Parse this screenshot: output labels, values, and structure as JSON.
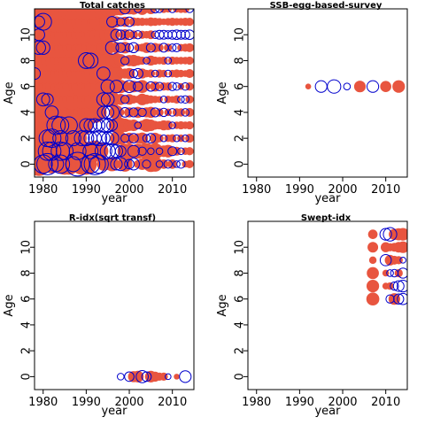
{
  "colors": {
    "positive": "#e8553f",
    "negative": "#0000cc"
  },
  "chart_data": [
    {
      "type": "scatter",
      "title": "Total catches",
      "xlabel": "year",
      "ylabel": "Age",
      "xlim": [
        1978,
        2015
      ],
      "ylim": [
        -1,
        12
      ],
      "xticks": [
        1980,
        1990,
        2000,
        2010
      ],
      "yticks": [
        0,
        2,
        4,
        6,
        8,
        10
      ],
      "ages": [
        0,
        1,
        2,
        3,
        4,
        5,
        6,
        7,
        8,
        9,
        10,
        11,
        12
      ],
      "years": [
        1978,
        1979,
        1980,
        1981,
        1982,
        1983,
        1984,
        1985,
        1986,
        1987,
        1988,
        1989,
        1990,
        1991,
        1992,
        1993,
        1994,
        1995,
        1996,
        1997,
        1998,
        1999,
        2000,
        2001,
        2002,
        2003,
        2004,
        2005,
        2006,
        2007,
        2008,
        2009,
        2010,
        2011,
        2012,
        2013,
        2014
      ],
      "residuals": [
        [
          4,
          5,
          -3,
          -4,
          3,
          -2,
          -3,
          4,
          4,
          -2,
          -5,
          4,
          4,
          -3,
          -4,
          -3,
          1.5,
          1.2,
          1.8,
          -1.2,
          -1.5,
          2,
          -0.8,
          -1.2,
          0.6,
          1.2,
          -0.6,
          2.2,
          2,
          -0.4,
          0.8,
          -0.6,
          0.8,
          -0.4,
          -0.6,
          0.4,
          0.6
        ],
        [
          4,
          4,
          4,
          -3,
          -3,
          4,
          -3,
          -2.5,
          4,
          3,
          -2.5,
          4,
          3,
          -2,
          4,
          3,
          -2.5,
          -2,
          -2,
          -1.4,
          -1,
          2,
          2,
          -1.2,
          2,
          -0.6,
          2.4,
          -0.4,
          2.3,
          -0.4,
          1.2,
          1.4,
          -0.7,
          0.7,
          -0.4,
          0.5,
          0.6
        ],
        [
          4,
          4,
          4,
          -2.5,
          -3,
          4,
          -2,
          4,
          3,
          -2,
          3,
          -2,
          -2,
          -1.5,
          -1.5,
          -2,
          -1.5,
          -1.3,
          -1.6,
          1.5,
          1.5,
          -0.6,
          1.1,
          -0.8,
          0.9,
          1.2,
          -0.5,
          -0.8,
          1.1,
          0.6,
          -0.4,
          0.5,
          0.6,
          -0.4,
          0.5,
          -0.4,
          0.7
        ],
        [
          4,
          4,
          4,
          4,
          3,
          -3,
          -2.5,
          4,
          -2.5,
          4,
          3,
          4,
          -1.6,
          -1.5,
          -1.6,
          -1.2,
          -1.7,
          -1.4,
          -1,
          2,
          2,
          1.6,
          1.1,
          1.2,
          -0.4,
          0.8,
          1.5,
          1.2,
          0.7,
          0.6,
          0.9,
          0.8,
          -0.4,
          0.5,
          0.6,
          0.5,
          0.6
        ],
        [
          4,
          4,
          4,
          4,
          -1.5,
          4,
          4,
          4,
          4,
          4,
          4,
          3,
          3,
          2.5,
          4,
          2,
          -1.3,
          -1.3,
          -1.8,
          1.8,
          0.5,
          -0.8,
          0.9,
          -0.7,
          1.1,
          -0.6,
          0.9,
          1.1,
          -0.7,
          0.6,
          -0.6,
          0.5,
          -0.5,
          0.6,
          0.6,
          -0.5,
          0.7
        ],
        [
          4,
          4,
          -1.5,
          -1.2,
          4,
          4,
          4,
          4,
          3,
          4,
          4,
          3,
          3,
          3,
          4,
          2.5,
          -1.6,
          -1.5,
          2.2,
          1.1,
          1.1,
          -0.6,
          1,
          0.6,
          0.5,
          1.2,
          0.8,
          0.6,
          0.5,
          0.4,
          -0.4,
          0.5,
          0.4,
          0.6,
          -0.4,
          -0.5,
          0.6
        ],
        [
          4,
          4,
          4,
          4,
          3,
          4,
          4,
          4,
          4,
          4,
          3,
          4,
          3,
          3,
          4,
          2.5,
          2.5,
          -1.6,
          2.3,
          -1.4,
          1.6,
          1.1,
          -1.3,
          1.2,
          -0.8,
          1.5,
          0.6,
          -0.8,
          0.9,
          -0.6,
          0.6,
          0.6,
          -0.6,
          -0.5,
          0.4,
          -0.5,
          0.6
        ],
        [
          -1.2,
          4,
          4,
          4,
          4,
          4,
          4,
          4,
          4,
          4,
          4,
          4,
          4,
          3,
          4,
          3,
          -1.5,
          3,
          1.9,
          2.1,
          0.6,
          0.9,
          1.1,
          -0.6,
          -0.9,
          0.9,
          0.5,
          0.6,
          -0.4,
          0.6,
          0.5,
          -0.4,
          0.5,
          0.6,
          0.5,
          0.4,
          0.7
        ],
        [
          4,
          4,
          4,
          4,
          4,
          4,
          4,
          4,
          4,
          4,
          4,
          4,
          -2.2,
          -2,
          3,
          2.5,
          2.4,
          2.4,
          1.6,
          2,
          1.5,
          -0.6,
          1.1,
          1.2,
          0.8,
          0.6,
          -0.4,
          0.9,
          0.6,
          0.5,
          0.6,
          -0.4,
          0.6,
          0.5,
          0.5,
          0.5,
          0.6
        ],
        [
          4,
          -1.6,
          -1.6,
          4,
          4,
          4,
          4,
          4,
          4,
          4,
          4,
          4,
          4,
          3,
          2.5,
          2.3,
          1.6,
          1.8,
          -1.5,
          1.1,
          -0.8,
          1.2,
          -0.6,
          -0.9,
          0.5,
          0.6,
          1,
          -0.7,
          0.8,
          0.6,
          -0.7,
          0.6,
          -0.5,
          -0.6,
          0.5,
          0.6,
          0.7
        ],
        [
          4,
          -1.2,
          4,
          4,
          4,
          4,
          4,
          4,
          0.5,
          4,
          4,
          4,
          4,
          3,
          4,
          3,
          3,
          2.5,
          2,
          -1.1,
          -0.8,
          1.1,
          -0.8,
          0.7,
          -0.6,
          0.6,
          0.5,
          0.7,
          -0.5,
          -0.7,
          -0.7,
          -0.6,
          -0.7,
          -0.8,
          -0.7,
          -0.7,
          -0.8
        ],
        [
          4,
          -1.2,
          -2.5,
          4,
          4,
          4,
          4,
          4,
          4,
          4,
          4,
          4,
          4,
          3,
          2,
          3,
          2.5,
          2.5,
          -1,
          1.1,
          -0.6,
          0.9,
          -0.8,
          0.7,
          0.6,
          0.6,
          0.5,
          0.7,
          0.6,
          0.5,
          0.4,
          0.5,
          0.6,
          0.5,
          0.5,
          0.6,
          0.6
        ],
        [
          4,
          4,
          4,
          4,
          4,
          4,
          4,
          4,
          4,
          4,
          4,
          4,
          4,
          4,
          4,
          3,
          3,
          2.2,
          2,
          1.5,
          1.5,
          -0.9,
          1.1,
          1.2,
          -0.5,
          1.3,
          0.6,
          1,
          -0.6,
          -0.5,
          0.6,
          0.5,
          -0.5,
          0.5,
          0.6,
          0.6,
          -0.5
        ]
      ]
    },
    {
      "type": "scatter",
      "title": "SSB-egg-based-survey",
      "xlabel": "year",
      "ylabel": "Age",
      "xlim": [
        1978,
        2015
      ],
      "ylim": [
        -1,
        12
      ],
      "xticks": [
        1980,
        1990,
        2000,
        2010
      ],
      "yticks": [
        0,
        2,
        4,
        6,
        8,
        10
      ],
      "ages": [
        6
      ],
      "years": [
        1992,
        1995,
        1998,
        2001,
        2004,
        2007,
        2010,
        2013
      ],
      "residuals": [
        [
          0.3,
          -1.2,
          -1.6,
          -0.4,
          1.2,
          -1.2,
          1.1,
          1.4
        ]
      ]
    },
    {
      "type": "scatter",
      "title": "R-idx(sqrt transf)",
      "xlabel": "year",
      "ylabel": "Age",
      "xlim": [
        1978,
        2015
      ],
      "ylim": [
        -1,
        12
      ],
      "xticks": [
        1980,
        1990,
        2000,
        2010
      ],
      "yticks": [
        0,
        2,
        4,
        6,
        8,
        10
      ],
      "ages": [
        0
      ],
      "years": [
        1998,
        2000,
        2001,
        2002,
        2003,
        2004,
        2005,
        2006,
        2007,
        2008,
        2009,
        2011,
        2013
      ],
      "residuals": [
        [
          -0.4,
          -0.8,
          1.1,
          1.2,
          -1.3,
          -0.8,
          1.2,
          0.9,
          0.6,
          0.6,
          -0.3,
          0.3,
          -1.2
        ]
      ]
    },
    {
      "type": "scatter",
      "title": "Swept-idx",
      "xlabel": "year",
      "ylabel": "Age",
      "xlim": [
        1978,
        2015
      ],
      "ylim": [
        -1,
        12
      ],
      "xticks": [
        1980,
        1990,
        2000,
        2010
      ],
      "yticks": [
        0,
        2,
        4,
        6,
        8,
        10
      ],
      "ages": [
        6,
        7,
        8,
        9,
        10,
        11
      ],
      "years": [
        2007,
        2010,
        2011,
        2012,
        2013,
        2014
      ],
      "residuals": [
        [
          1.5,
          0,
          -0.6,
          1.2,
          -0.9,
          -1.1
        ],
        [
          1.4,
          0.4,
          0.5,
          -0.6,
          -1.0,
          -1.2
        ],
        [
          1.3,
          0.4,
          -0.4,
          -0.5,
          0.6,
          -0.9
        ],
        [
          0.5,
          -1.1,
          1.0,
          0.7,
          0.6,
          -0.3
        ],
        [
          1.0,
          0.9,
          0.6,
          0.7,
          1.0,
          1.2
        ],
        [
          0.8,
          -1.2,
          -1.6,
          1.1,
          1.3,
          1.4
        ]
      ]
    }
  ]
}
